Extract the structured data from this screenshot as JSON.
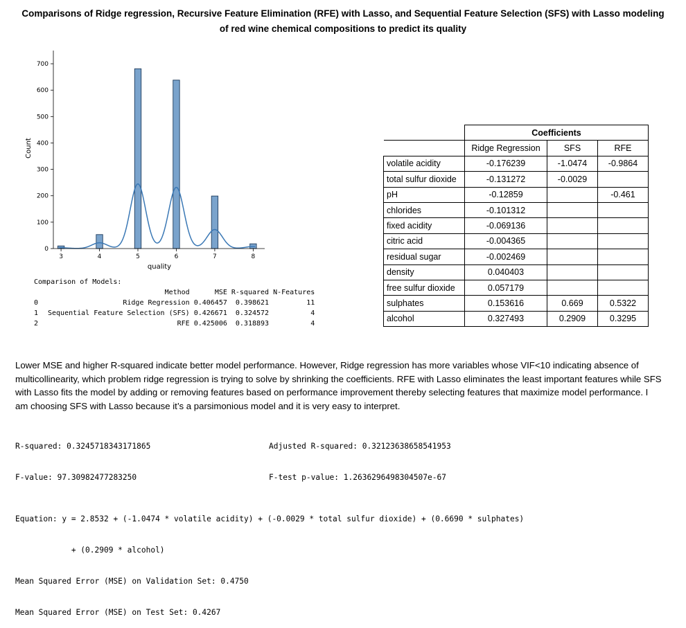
{
  "title": "Comparisons of Ridge regression, Recursive Feature Elimination (RFE) with Lasso, and Sequential Feature Selection (SFS) with Lasso modeling of red wine chemical compositions to predict its quality",
  "chart_data": {
    "type": "bar",
    "subtype": "histogram-with-kde",
    "xlabel": "quality",
    "ylabel": "Count",
    "xlim": [
      2.8,
      8.3
    ],
    "ylim": [
      0,
      750
    ],
    "xticks": [
      "3",
      "4",
      "5",
      "6",
      "7",
      "8"
    ],
    "yticks": [
      "0",
      "100",
      "200",
      "300",
      "400",
      "500",
      "600",
      "700"
    ],
    "categories": [
      3,
      4,
      5,
      6,
      7,
      8
    ],
    "values": [
      10,
      53,
      681,
      638,
      199,
      18
    ],
    "bar_color": "#7aa3cc",
    "kde_color": "#3a78b5",
    "kde_peaks": [
      {
        "x": 3,
        "y": 3
      },
      {
        "x": 4,
        "y": 22
      },
      {
        "x": 5,
        "y": 245
      },
      {
        "x": 6,
        "y": 232
      },
      {
        "x": 7,
        "y": 72
      },
      {
        "x": 8,
        "y": 8
      }
    ]
  },
  "comparison": {
    "title": "Comparison of Models:",
    "headers": [
      "",
      "Method",
      "MSE",
      "R-squared",
      "N-Features"
    ],
    "rows": [
      [
        "0",
        "Ridge Regression",
        "0.406457",
        "0.398621",
        "11"
      ],
      [
        "1",
        "Sequential Feature Selection (SFS)",
        "0.426671",
        "0.324572",
        "4"
      ],
      [
        "2",
        "RFE",
        "0.425006",
        "0.318893",
        "4"
      ]
    ]
  },
  "coefficients": {
    "group_header": "Coefficients",
    "columns": [
      "Ridge Regression",
      "SFS",
      "RFE"
    ],
    "rows": [
      {
        "feature": "volatile acidity",
        "ridge": "-0.176239",
        "sfs": "-1.0474",
        "rfe": "-0.9864"
      },
      {
        "feature": "total sulfur dioxide",
        "ridge": "-0.131272",
        "sfs": "-0.0029",
        "rfe": ""
      },
      {
        "feature": "pH",
        "ridge": "-0.12859",
        "sfs": "",
        "rfe": "-0.461"
      },
      {
        "feature": "chlorides",
        "ridge": "-0.101312",
        "sfs": "",
        "rfe": ""
      },
      {
        "feature": "fixed acidity",
        "ridge": "-0.069136",
        "sfs": "",
        "rfe": ""
      },
      {
        "feature": "citric acid",
        "ridge": "-0.004365",
        "sfs": "",
        "rfe": ""
      },
      {
        "feature": "residual sugar",
        "ridge": "-0.002469",
        "sfs": "",
        "rfe": ""
      },
      {
        "feature": "density",
        "ridge": "0.040403",
        "sfs": "",
        "rfe": ""
      },
      {
        "feature": "free sulfur dioxide",
        "ridge": "0.057179",
        "sfs": "",
        "rfe": ""
      },
      {
        "feature": "sulphates",
        "ridge": "0.153616",
        "sfs": "0.669",
        "rfe": "0.5322"
      },
      {
        "feature": "alcohol",
        "ridge": "0.327493",
        "sfs": "0.2909",
        "rfe": "0.3295"
      }
    ]
  },
  "paragraph": "Lower MSE and higher R-squared indicate better model performance. However, Ridge regression has more variables whose VIF<10 indicating absence of multicollinearity, which problem ridge regression is trying to solve by shrinking the coefficients. RFE with Lasso eliminates the least important features while SFS with Lasso fits the model by adding or removing features based on performance improvement thereby selecting features that maximize model performance. I am choosing SFS with Lasso because it’s a parsimonious model and it is very easy to interpret.",
  "stats": {
    "r_squared": "R-squared: 0.3245718343171865",
    "adj_r_squared": "Adjusted R-squared: 0.32123638658541953",
    "f_value": "F-value: 97.30982477283250",
    "f_pvalue": "F-test p-value: 1.2636296498304507e-67",
    "equation_line1": "Equation: y = 2.8532 + (-1.0474 * volatile acidity) + (-0.0029 * total sulfur dioxide) + (0.6690 * sulphates)",
    "equation_line2": "            + (0.2909 * alcohol)",
    "mse_validation": "Mean Squared Error (MSE) on Validation Set: 0.4750",
    "mse_test": "Mean Squared Error (MSE) on Test Set: 0.4267"
  }
}
